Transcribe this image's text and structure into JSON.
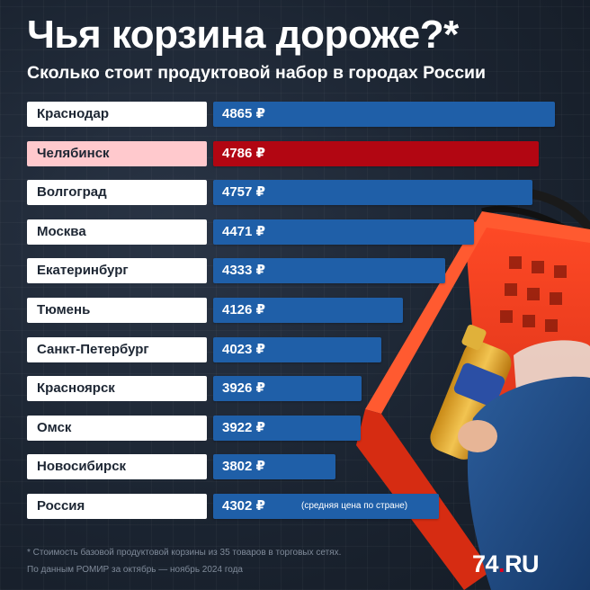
{
  "title": "Чья корзина дороже?*",
  "subtitle": "Сколько стоит продуктовой набор в городах России",
  "chart_data": {
    "type": "bar",
    "orientation": "horizontal",
    "title": "Чья корзина дороже?*",
    "subtitle": "Сколько стоит продуктовой набор в городах России",
    "unit": "₽",
    "categories": [
      "Краснодар",
      "Челябинск",
      "Волгоград",
      "Москва",
      "Екатеринбург",
      "Тюмень",
      "Санкт-Петербург",
      "Красноярск",
      "Омск",
      "Новосибирск",
      "Россия"
    ],
    "values": [
      4865,
      4786,
      4757,
      4471,
      4333,
      4126,
      4023,
      3926,
      3922,
      3802,
      4302
    ],
    "value_labels": [
      "4865 ₽",
      "4786 ₽",
      "4757 ₽",
      "4471 ₽",
      "4333 ₽",
      "4126 ₽",
      "4023 ₽",
      "3926 ₽",
      "3922 ₽",
      "3802 ₽",
      "4302 ₽"
    ],
    "highlighted": "Челябинск",
    "annotation": "(средняя цена по стране)",
    "xlim": [
      3530,
      4865
    ]
  },
  "colors": {
    "bar": "#1f5fa8",
    "highlight_bar": "#b20612",
    "label_bg": "#ffffff",
    "highlight_label_bg": "#ffc9cd"
  },
  "footnotes": {
    "line1": "* Стоимость базовой продуктовой корзины из 35 товаров в торговых сетях.",
    "line2": "По данным РОМИР за октябрь — ноябрь 2024 года"
  },
  "logo": {
    "number": "74",
    "dot": ".",
    "suffix": "RU"
  }
}
